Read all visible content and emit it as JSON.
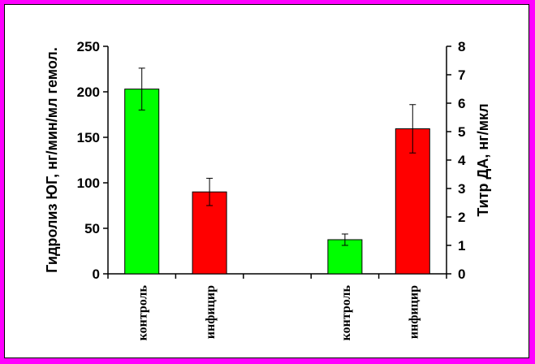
{
  "chart_data": {
    "type": "bar",
    "categories": [
      "контроль",
      "инфицир",
      "",
      "контроль",
      "инфицир"
    ],
    "left_axis": {
      "label": "Гидролиз ЮГ, нг/мин/мл гемол.",
      "ylim": [
        0,
        250
      ],
      "ticks": [
        0,
        50,
        100,
        150,
        200,
        250
      ]
    },
    "right_axis": {
      "label": "Титр ДА, нг/мкл",
      "ylim": [
        0,
        8
      ],
      "ticks": [
        0,
        1,
        2,
        3,
        4,
        5,
        6,
        7,
        8
      ]
    },
    "bars": [
      {
        "category": "контроль",
        "axis": "left",
        "value": 203,
        "error": 23,
        "color": "#00ff00"
      },
      {
        "category": "инфицир",
        "axis": "left",
        "value": 90,
        "error": 15,
        "color": "#ff0000"
      },
      {
        "category": "контроль",
        "axis": "right",
        "value": 1.2,
        "error": 0.2,
        "color": "#00ff00"
      },
      {
        "category": "инфицир",
        "axis": "right",
        "value": 5.1,
        "error": 0.85,
        "color": "#ff0000"
      }
    ],
    "grid": false,
    "legend": "none"
  },
  "colors": {
    "background": "#ff00ff",
    "plot_background": "#ffffff"
  }
}
